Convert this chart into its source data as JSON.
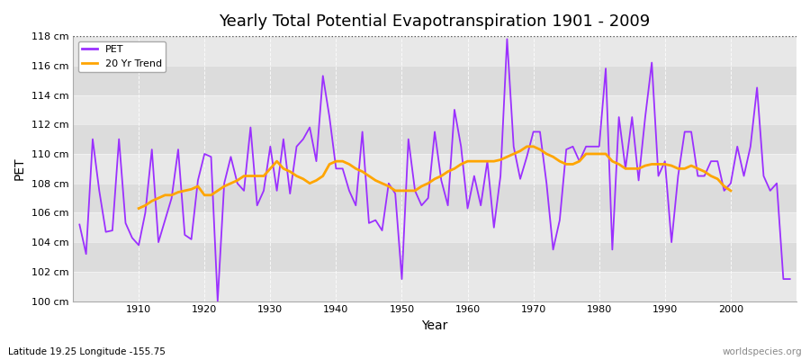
{
  "title": "Yearly Total Potential Evapotranspiration 1901 - 2009",
  "xlabel": "Year",
  "ylabel": "PET",
  "subtitle": "Latitude 19.25 Longitude -155.75",
  "watermark": "worldspecies.org",
  "ylim": [
    100,
    118
  ],
  "ytick_labels": [
    "100 cm",
    "102 cm",
    "104 cm",
    "106 cm",
    "108 cm",
    "110 cm",
    "112 cm",
    "114 cm",
    "116 cm",
    "118 cm"
  ],
  "ytick_values": [
    100,
    102,
    104,
    106,
    108,
    110,
    112,
    114,
    116,
    118
  ],
  "pet_color": "#9B30FF",
  "trend_color": "#FFA500",
  "bg_color": "#DCDCDC",
  "plot_bg_light": "#E8E8E8",
  "pet_linewidth": 1.3,
  "trend_linewidth": 2.0,
  "years": [
    1901,
    1902,
    1903,
    1904,
    1905,
    1906,
    1907,
    1908,
    1909,
    1910,
    1911,
    1912,
    1913,
    1914,
    1915,
    1916,
    1917,
    1918,
    1919,
    1920,
    1921,
    1922,
    1923,
    1924,
    1925,
    1926,
    1927,
    1928,
    1929,
    1930,
    1931,
    1932,
    1933,
    1934,
    1935,
    1936,
    1937,
    1938,
    1939,
    1940,
    1941,
    1942,
    1943,
    1944,
    1945,
    1946,
    1947,
    1948,
    1949,
    1950,
    1951,
    1952,
    1953,
    1954,
    1955,
    1956,
    1957,
    1958,
    1959,
    1960,
    1961,
    1962,
    1963,
    1964,
    1965,
    1966,
    1967,
    1968,
    1969,
    1970,
    1971,
    1972,
    1973,
    1974,
    1975,
    1976,
    1977,
    1978,
    1979,
    1980,
    1981,
    1982,
    1983,
    1984,
    1985,
    1986,
    1987,
    1988,
    1989,
    1990,
    1991,
    1992,
    1993,
    1994,
    1995,
    1996,
    1997,
    1998,
    1999,
    2000,
    2001,
    2002,
    2003,
    2004,
    2005,
    2006,
    2007,
    2008,
    2009
  ],
  "pet_values": [
    105.2,
    103.2,
    111.0,
    107.5,
    104.7,
    104.8,
    111.0,
    105.3,
    104.3,
    103.8,
    106.0,
    110.3,
    104.0,
    105.5,
    107.0,
    110.3,
    104.5,
    104.2,
    108.2,
    110.0,
    109.8,
    100.0,
    108.0,
    109.8,
    108.0,
    107.5,
    111.8,
    106.5,
    107.5,
    110.5,
    107.5,
    111.0,
    107.3,
    110.5,
    111.0,
    111.8,
    109.5,
    115.3,
    112.5,
    109.0,
    109.0,
    107.5,
    106.5,
    111.5,
    105.3,
    105.5,
    104.8,
    108.0,
    107.3,
    101.5,
    111.0,
    107.5,
    106.5,
    107.0,
    111.5,
    108.2,
    106.5,
    113.0,
    110.5,
    106.3,
    108.5,
    106.5,
    109.5,
    105.0,
    108.5,
    117.8,
    110.5,
    108.3,
    109.8,
    111.5,
    111.5,
    108.0,
    103.5,
    105.5,
    110.3,
    110.5,
    109.5,
    110.5,
    110.5,
    110.5,
    115.8,
    103.5,
    112.5,
    109.0,
    112.5,
    108.2,
    112.5,
    116.2,
    108.5,
    109.5,
    104.0,
    108.5,
    111.5,
    111.5,
    108.5,
    108.5,
    109.5,
    109.5,
    107.5,
    108.0,
    110.5,
    108.5,
    110.5,
    114.5,
    108.5,
    107.5,
    108.0,
    101.5,
    101.5
  ],
  "trend_years": [
    1910,
    1911,
    1912,
    1913,
    1914,
    1915,
    1916,
    1917,
    1918,
    1919,
    1920,
    1921,
    1922,
    1923,
    1924,
    1925,
    1926,
    1927,
    1928,
    1929,
    1930,
    1931,
    1932,
    1933,
    1934,
    1935,
    1936,
    1937,
    1938,
    1939,
    1940,
    1941,
    1942,
    1943,
    1944,
    1945,
    1946,
    1947,
    1948,
    1949,
    1950,
    1951,
    1952,
    1953,
    1954,
    1955,
    1956,
    1957,
    1958,
    1959,
    1960,
    1961,
    1962,
    1963,
    1964,
    1965,
    1966,
    1967,
    1968,
    1969,
    1970,
    1971,
    1972,
    1973,
    1974,
    1975,
    1976,
    1977,
    1978,
    1979,
    1980,
    1981,
    1982,
    1983,
    1984,
    1985,
    1986,
    1987,
    1988,
    1989,
    1990,
    1991,
    1992,
    1993,
    1994,
    1995,
    1996,
    1997,
    1998,
    1999,
    2000
  ],
  "trend_values": [
    106.3,
    106.5,
    106.8,
    107.0,
    107.2,
    107.2,
    107.4,
    107.5,
    107.6,
    107.8,
    107.2,
    107.2,
    107.5,
    107.8,
    108.0,
    108.2,
    108.5,
    108.5,
    108.5,
    108.5,
    109.0,
    109.5,
    109.0,
    108.8,
    108.5,
    108.3,
    108.0,
    108.2,
    108.5,
    109.3,
    109.5,
    109.5,
    109.3,
    109.0,
    108.8,
    108.5,
    108.2,
    108.0,
    107.8,
    107.5,
    107.5,
    107.5,
    107.5,
    107.8,
    108.0,
    108.3,
    108.5,
    108.8,
    109.0,
    109.3,
    109.5,
    109.5,
    109.5,
    109.5,
    109.5,
    109.6,
    109.8,
    110.0,
    110.2,
    110.5,
    110.5,
    110.3,
    110.0,
    109.8,
    109.5,
    109.3,
    109.3,
    109.5,
    110.0,
    110.0,
    110.0,
    110.0,
    109.5,
    109.3,
    109.0,
    109.0,
    109.0,
    109.2,
    109.3,
    109.3,
    109.3,
    109.2,
    109.0,
    109.0,
    109.2,
    109.0,
    108.8,
    108.5,
    108.3,
    107.8,
    107.5
  ]
}
